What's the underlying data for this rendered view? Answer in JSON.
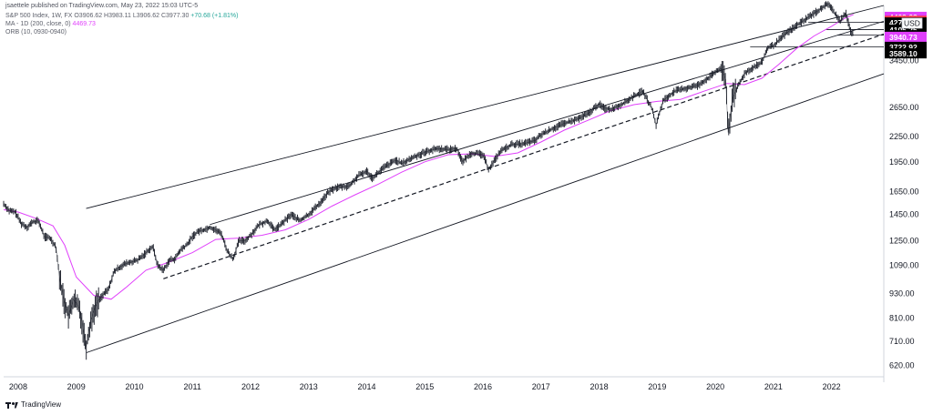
{
  "header": {
    "published": "jsaettele published on TradingView.com, May 23, 2022 15:03 UTC-5",
    "symbol_line": "S&P 500 Index, 1W, FX O3906.62 H3983.11 L3906.62 C3977.30 +70.68 (+1.81%)",
    "symbol_text": "S&P 500 Index, 1W, FX  O3906.62  H3983.11  L3906.62  C3977.30",
    "change_text": "+70.68 (+1.81%)",
    "ma_label": "MA - 1D (200, close, 0)",
    "ma_value": "4469.73",
    "orb_label": "ORB (10, 0930-0940)"
  },
  "footer": {
    "brand": "TradingView"
  },
  "colors": {
    "candles": "#131722",
    "ma": "#e040fb",
    "lines": "#131722",
    "tag_dark": "#000000",
    "tag_magenta": "#e040fb",
    "tag_red": "#f23645",
    "currency_tag": "#ffffff"
  },
  "price_tags": [
    {
      "label": "4409.63",
      "price": 4409.63,
      "style": "magenta"
    },
    {
      "label": "4312.38",
      "price": 4312.38,
      "style": "red"
    },
    {
      "label": "4272.15",
      "price": 4272.15,
      "style": "dark"
    },
    {
      "label": "4105.25",
      "price": 4105.25,
      "style": "dark"
    },
    {
      "label": "3977.30",
      "price": 3977.3,
      "style": "dark",
      "sub": "4d 1h"
    },
    {
      "label": "3940.73",
      "price": 3940.73,
      "style": "magenta"
    },
    {
      "label": "3722.92",
      "price": 3722.92,
      "style": "dark"
    },
    {
      "label": "3589.10",
      "price": 3589.1,
      "style": "dark"
    }
  ],
  "currency_label": "USD",
  "chart_data": {
    "type": "line",
    "title": "S&P 500 Index, 1W, FX",
    "y_scale": "log",
    "ylim": [
      600,
      4700
    ],
    "xlim": [
      2007.75,
      2022.9
    ],
    "ytick_labels": [
      "4450.00",
      "4300.00",
      "3450.00",
      "2650.00",
      "2250.00",
      "1950.00",
      "1650.00",
      "1450.00",
      "1250.00",
      "1090.00",
      "930.00",
      "810.00",
      "710.00",
      "620.00"
    ],
    "ytick_values": [
      4450,
      4300,
      3450,
      2650,
      2250,
      1950,
      1650,
      1450,
      1250,
      1090,
      930,
      810,
      710,
      620
    ],
    "xtick_labels": [
      "2008",
      "2009",
      "2010",
      "2011",
      "2012",
      "2013",
      "2014",
      "2015",
      "2016",
      "2017",
      "2018",
      "2019",
      "2020",
      "2021",
      "2022"
    ],
    "xtick_values": [
      2008,
      2009,
      2010,
      2011,
      2012,
      2013,
      2014,
      2015,
      2016,
      2017,
      2018,
      2019,
      2020,
      2021,
      2022
    ],
    "grid": false,
    "series": [
      {
        "name": "S&P 500 Index",
        "kind": "weekly-close",
        "x": [
          2007.75,
          2007.85,
          2007.95,
          2008.05,
          2008.15,
          2008.25,
          2008.35,
          2008.45,
          2008.55,
          2008.65,
          2008.72,
          2008.8,
          2008.87,
          2008.95,
          2009.05,
          2009.12,
          2009.17,
          2009.25,
          2009.35,
          2009.45,
          2009.55,
          2009.65,
          2009.75,
          2009.85,
          2009.95,
          2010.05,
          2010.15,
          2010.25,
          2010.32,
          2010.4,
          2010.5,
          2010.6,
          2010.7,
          2010.8,
          2010.9,
          2011.0,
          2011.1,
          2011.2,
          2011.3,
          2011.4,
          2011.5,
          2011.6,
          2011.7,
          2011.8,
          2011.9,
          2012.0,
          2012.15,
          2012.3,
          2012.4,
          2012.5,
          2012.7,
          2012.85,
          2013.0,
          2013.2,
          2013.35,
          2013.5,
          2013.7,
          2013.85,
          2014.0,
          2014.1,
          2014.3,
          2014.5,
          2014.6,
          2014.8,
          2015.0,
          2015.2,
          2015.4,
          2015.55,
          2015.65,
          2015.8,
          2016.0,
          2016.1,
          2016.3,
          2016.5,
          2016.7,
          2016.9,
          2017.0,
          2017.2,
          2017.4,
          2017.6,
          2017.8,
          2018.0,
          2018.08,
          2018.2,
          2018.4,
          2018.6,
          2018.75,
          2018.9,
          2018.98,
          2019.1,
          2019.3,
          2019.5,
          2019.7,
          2019.9,
          2020.0,
          2020.1,
          2020.18,
          2020.22,
          2020.3,
          2020.4,
          2020.5,
          2020.6,
          2020.7,
          2020.8,
          2020.9,
          2021.0,
          2021.2,
          2021.4,
          2021.6,
          2021.8,
          2021.95,
          2022.05,
          2022.15,
          2022.25,
          2022.32,
          2022.38
        ],
        "y": [
          1540,
          1480,
          1470,
          1380,
          1350,
          1390,
          1400,
          1280,
          1270,
          1210,
          1000,
          880,
          820,
          900,
          860,
          760,
          690,
          800,
          880,
          920,
          950,
          1050,
          1080,
          1100,
          1110,
          1120,
          1150,
          1190,
          1210,
          1090,
          1060,
          1120,
          1130,
          1190,
          1220,
          1280,
          1320,
          1330,
          1350,
          1330,
          1300,
          1180,
          1130,
          1250,
          1250,
          1290,
          1370,
          1400,
          1330,
          1360,
          1450,
          1400,
          1450,
          1550,
          1650,
          1690,
          1700,
          1800,
          1850,
          1780,
          1890,
          1970,
          1930,
          2000,
          2060,
          2100,
          2090,
          2100,
          1950,
          2050,
          2030,
          1870,
          2070,
          2150,
          2160,
          2200,
          2270,
          2350,
          2420,
          2470,
          2550,
          2700,
          2640,
          2620,
          2700,
          2820,
          2900,
          2650,
          2400,
          2750,
          2900,
          2950,
          3000,
          3140,
          3230,
          3300,
          3100,
          2300,
          2800,
          3000,
          3200,
          3280,
          3350,
          3400,
          3700,
          3750,
          4000,
          4200,
          4400,
          4600,
          4750,
          4500,
          4300,
          4500,
          4100,
          3977
        ]
      },
      {
        "name": "MA (200)",
        "kind": "moving-average",
        "x": [
          2007.75,
          2008.0,
          2008.3,
          2008.6,
          2008.8,
          2009.0,
          2009.3,
          2009.6,
          2009.85,
          2010.2,
          2010.6,
          2011.0,
          2011.4,
          2011.8,
          2012.2,
          2012.6,
          2013.0,
          2013.4,
          2013.8,
          2014.2,
          2014.6,
          2015.0,
          2015.4,
          2015.8,
          2016.2,
          2016.6,
          2017.0,
          2017.4,
          2017.8,
          2018.2,
          2018.6,
          2019.0,
          2019.4,
          2019.8,
          2020.2,
          2020.5,
          2020.8,
          2021.1,
          2021.4,
          2021.7,
          2022.0,
          2022.2,
          2022.38
        ],
        "y": [
          1490,
          1470,
          1420,
          1360,
          1220,
          1020,
          920,
          900,
          960,
          1060,
          1110,
          1170,
          1260,
          1270,
          1290,
          1330,
          1410,
          1520,
          1620,
          1720,
          1840,
          1950,
          2030,
          2040,
          2010,
          2050,
          2180,
          2330,
          2460,
          2600,
          2690,
          2740,
          2770,
          2900,
          3030,
          3010,
          3120,
          3380,
          3690,
          3960,
          4180,
          4350,
          4469.73
        ]
      }
    ],
    "trendlines": [
      {
        "name": "upper channel",
        "style": "solid",
        "x": [
          2009.17,
          2022.9
        ],
        "y": [
          1500,
          4700
        ]
      },
      {
        "name": "lower channel",
        "style": "solid",
        "x": [
          2009.17,
          2022.9
        ],
        "y": [
          666,
          3200
        ]
      },
      {
        "name": "mid channel",
        "style": "solid",
        "x": [
          2011.3,
          2022.9
        ],
        "y": [
          1370,
          4300
        ]
      },
      {
        "name": "support",
        "style": "dashed",
        "x": [
          2010.5,
          2022.9
        ],
        "y": [
          1010,
          4000
        ]
      }
    ]
  }
}
